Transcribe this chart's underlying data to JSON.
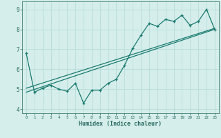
{
  "xlabel": "Humidex (Indice chaleur)",
  "bg_color": "#d5eeeb",
  "line_color": "#1a7a6e",
  "grid_color": "#b8ddd9",
  "xlim": [
    -0.5,
    23.5
  ],
  "ylim": [
    3.8,
    9.4
  ],
  "xticks": [
    0,
    1,
    2,
    3,
    4,
    5,
    6,
    7,
    8,
    9,
    10,
    11,
    12,
    13,
    14,
    15,
    16,
    17,
    18,
    19,
    20,
    21,
    22,
    23
  ],
  "yticks": [
    4,
    5,
    6,
    7,
    8,
    9
  ],
  "line1_x": [
    0,
    1,
    2,
    3,
    4,
    5,
    6,
    7,
    8,
    9,
    10,
    11,
    12,
    13,
    14,
    15,
    16,
    17,
    18,
    19,
    20,
    21,
    22,
    23
  ],
  "line1_y": [
    6.8,
    4.85,
    5.05,
    5.2,
    5.0,
    4.9,
    5.3,
    4.3,
    4.95,
    4.95,
    5.3,
    5.5,
    6.2,
    7.05,
    7.7,
    8.3,
    8.15,
    8.5,
    8.4,
    8.7,
    8.2,
    8.4,
    9.0,
    8.0
  ],
  "line2_x": [
    0,
    23
  ],
  "line2_y": [
    4.85,
    8.0
  ],
  "line3_x": [
    0,
    23
  ],
  "line3_y": [
    5.05,
    8.05
  ]
}
